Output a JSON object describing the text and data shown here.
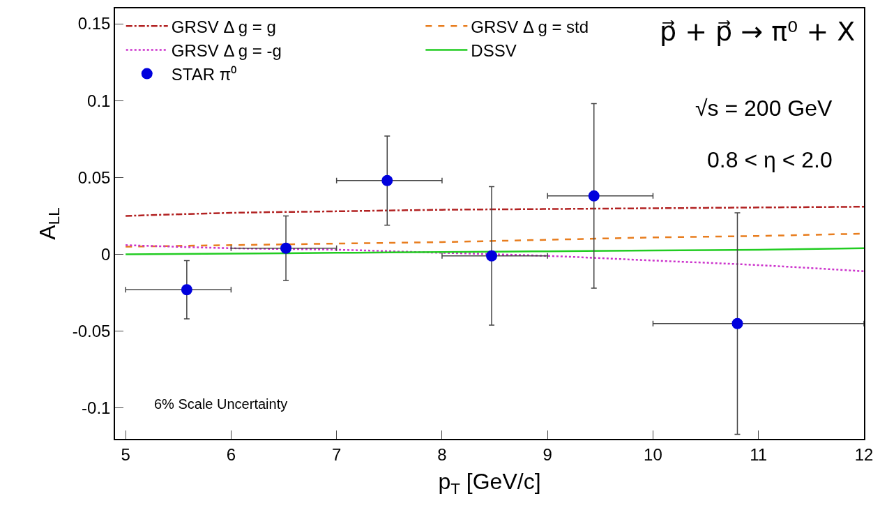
{
  "chart_data": {
    "type": "scatter",
    "xlabel": "p$_{T}$ [GeV/c]",
    "ylabel": "A$_{LL}$",
    "xlim": [
      4.9,
      12
    ],
    "ylim": [
      -0.12,
      0.16
    ],
    "xticks": [
      5,
      6,
      7,
      8,
      9,
      10,
      11,
      12
    ],
    "yticks": [
      {
        "value": -0.1,
        "label": "-0.1"
      },
      {
        "value": -0.05,
        "label": "-0.05"
      },
      0,
      {
        "value": 0.05,
        "label": "0.05"
      },
      {
        "value": 0.1,
        "label": "0.1"
      },
      {
        "value": 0.15,
        "label": "0.15"
      }
    ],
    "legend": "top left",
    "series": [
      {
        "name": "GRSV Δ g = g",
        "type": "line",
        "color": "#b22222",
        "line_style": "dashdot",
        "marker": "none",
        "x": [
          5,
          6,
          7,
          8,
          9,
          10,
          11,
          12
        ],
        "values": [
          0.025,
          0.027,
          0.028,
          0.029,
          0.0295,
          0.03,
          0.0305,
          0.031
        ]
      },
      {
        "name": "GRSV Δ g = std",
        "type": "line",
        "color": "#e87d1e",
        "line_style": "dashed",
        "marker": "none",
        "x": [
          5,
          6,
          7,
          8,
          9,
          10,
          11,
          12
        ],
        "values": [
          0.005,
          0.006,
          0.007,
          0.008,
          0.0095,
          0.011,
          0.012,
          0.0135
        ]
      },
      {
        "name": "GRSV Δ g = -g",
        "type": "line",
        "color": "#cc33cc",
        "line_style": "dotted",
        "marker": "none",
        "x": [
          5,
          6,
          7,
          8,
          9,
          10,
          11,
          12
        ],
        "values": [
          0.006,
          0.004,
          0.003,
          0.001,
          -0.001,
          -0.004,
          -0.007,
          -0.011
        ]
      },
      {
        "name": "DSSV",
        "type": "line",
        "color": "#22cc22",
        "line_style": "solid",
        "marker": "none",
        "x": [
          5,
          6,
          7,
          8,
          9,
          10,
          11,
          12
        ],
        "values": [
          0.0,
          0.0005,
          0.001,
          0.0015,
          0.002,
          0.0025,
          0.003,
          0.004
        ]
      },
      {
        "name": "STAR π⁰",
        "color": "#0000dd",
        "marker": "circle",
        "x": [
          5.58,
          6.52,
          7.48,
          8.47,
          9.44,
          10.8
        ],
        "values": [
          -0.023,
          0.004,
          0.048,
          -0.001,
          0.038,
          -0.045
        ],
        "errors": [
          0.019,
          0.021,
          0.029,
          0.045,
          0.06,
          0.072
        ],
        "xerrors": [
          [
            5,
            6
          ],
          [
            6,
            7
          ],
          [
            7,
            8
          ],
          [
            8,
            9
          ],
          [
            9,
            10
          ],
          [
            10,
            12
          ]
        ]
      }
    ],
    "annotations": [
      "p⃗ + p⃗ → π⁰ + X",
      "√s = 200 GeV",
      "0.8 < η < 2.0",
      "6% Scale Uncertainty"
    ]
  }
}
